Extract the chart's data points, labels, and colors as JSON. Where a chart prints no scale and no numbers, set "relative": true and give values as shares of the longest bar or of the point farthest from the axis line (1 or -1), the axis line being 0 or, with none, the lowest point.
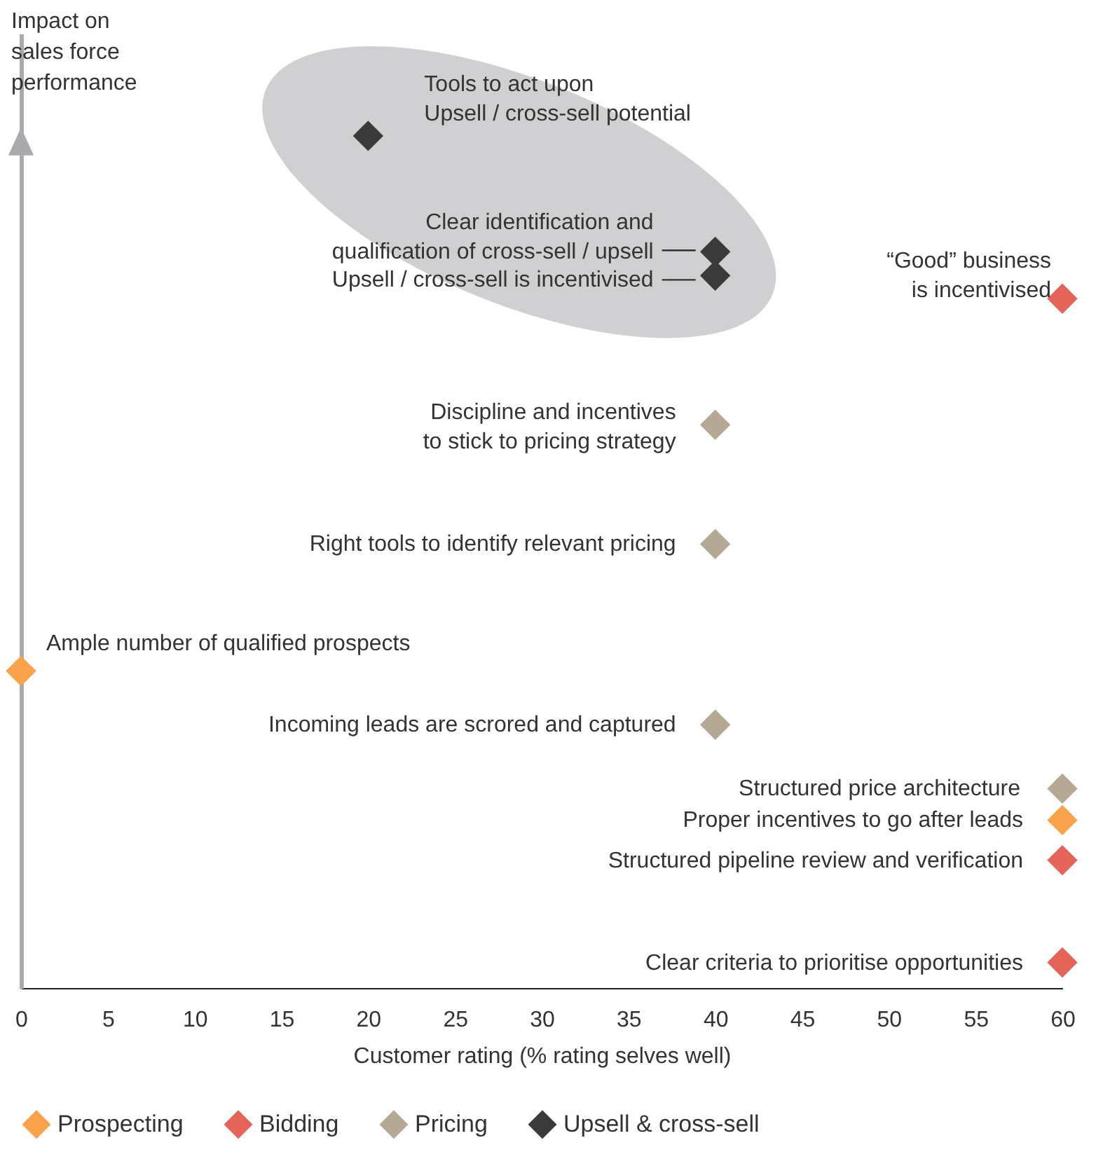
{
  "chart_data": {
    "type": "scatter",
    "relative": true,
    "xlabel": "Customer rating (% rating selves well)",
    "ylabel": "Impact on\nsales force\nperformance",
    "xlim": [
      0,
      60
    ],
    "xticks": [
      0,
      5,
      10,
      15,
      20,
      25,
      30,
      35,
      40,
      45,
      50,
      55,
      60
    ],
    "marker": "diamond",
    "legend": "bottom",
    "grid": false,
    "series": [
      {
        "name": "Prospecting",
        "color": "#f9a24b",
        "x": [
          0,
          60
        ],
        "values": [
          0.372,
          0.197
        ]
      },
      {
        "name": "Bidding",
        "color": "#e5645a",
        "x": [
          60,
          60,
          60
        ],
        "values": [
          0.809,
          0.15,
          0.03
        ]
      },
      {
        "name": "Pricing",
        "color": "#b5a895",
        "x": [
          40,
          40,
          40,
          60
        ],
        "values": [
          0.661,
          0.521,
          0.309,
          0.234
        ]
      },
      {
        "name": "Upsell & cross-sell",
        "color": "#3a3a3a",
        "x": [
          20,
          40,
          40
        ],
        "values": [
          1.0,
          0.864,
          0.836
        ]
      }
    ],
    "annotations": [
      {
        "text": "Tools to act upon\nUpsell / cross-sell potential",
        "x": 20,
        "y": 1.0
      },
      {
        "text": "Clear identification and\nqualification of cross-sell / upsell",
        "x": 40,
        "y": 0.864
      },
      {
        "text": "Upsell / cross-sell is incentivised",
        "x": 40,
        "y": 0.836
      },
      {
        "text": "“Good” business\nis incentivised",
        "x": 60,
        "y": 0.809
      },
      {
        "text": "Discipline and incentives\nto stick to pricing strategy",
        "x": 40,
        "y": 0.661
      },
      {
        "text": "Right tools to identify relevant pricing",
        "x": 40,
        "y": 0.521
      },
      {
        "text": "Ample number of qualified prospects",
        "x": 0,
        "y": 0.372
      },
      {
        "text": "Incoming leads are scrored and captured",
        "x": 40,
        "y": 0.309
      },
      {
        "text": "Structured price architecture",
        "x": 60,
        "y": 0.234
      },
      {
        "text": "Proper incentives to go after leads",
        "x": 60,
        "y": 0.197
      },
      {
        "text": "Structured pipeline review and verification",
        "x": 60,
        "y": 0.15
      },
      {
        "text": "Clear criteria to prioritise opportunities",
        "x": 60,
        "y": 0.03
      }
    ]
  }
}
